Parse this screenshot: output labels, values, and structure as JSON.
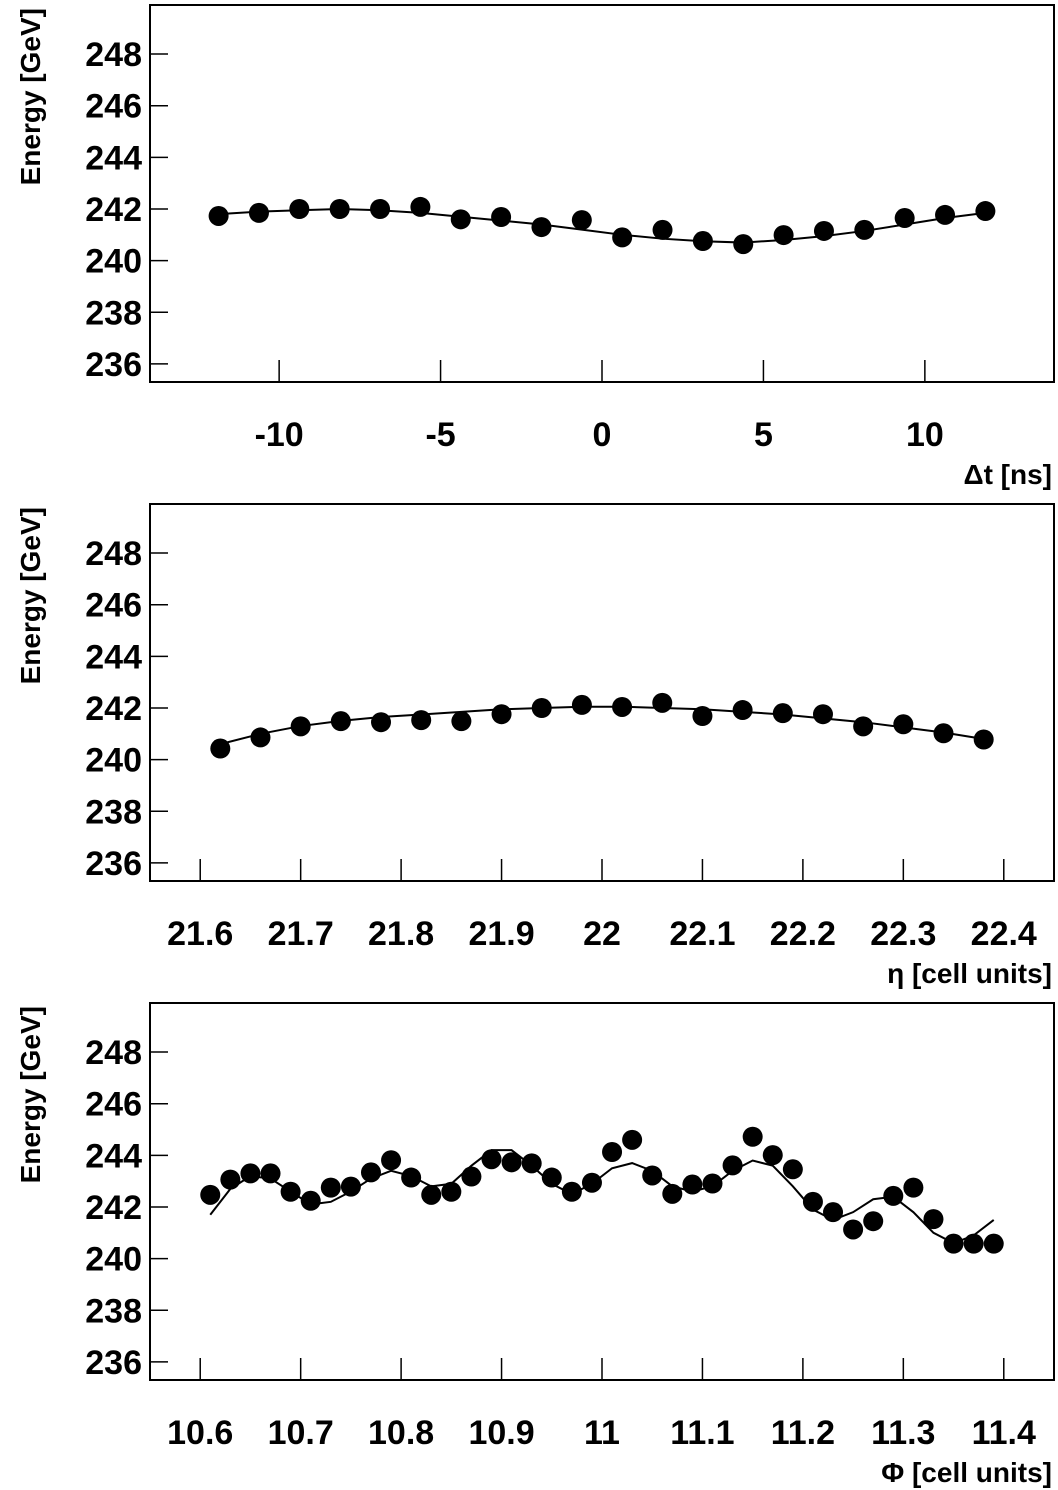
{
  "chart_data": [
    {
      "type": "scatter",
      "y_label": "Energy [GeV]",
      "x_label": "Δt [ns]",
      "x": [
        -11.875,
        -10.625,
        -9.375,
        -8.125,
        -6.875,
        -5.625,
        -4.375,
        -3.125,
        -1.875,
        -0.625,
        0.625,
        1.875,
        3.125,
        4.375,
        5.625,
        6.875,
        8.125,
        9.375,
        10.625,
        11.875
      ],
      "values": [
        241.73,
        241.85,
        242.0,
        242.0,
        242.0,
        242.08,
        241.6,
        241.69,
        241.3,
        241.57,
        240.9,
        241.19,
        240.76,
        240.64,
        240.99,
        241.15,
        241.19,
        241.65,
        241.77,
        241.92
      ],
      "fit_values": [
        241.8,
        241.9,
        241.95,
        242.0,
        241.95,
        241.85,
        241.7,
        241.55,
        241.4,
        241.2,
        241.0,
        240.85,
        240.75,
        240.7,
        240.8,
        240.95,
        241.15,
        241.4,
        241.65,
        241.85
      ],
      "color": "#000000",
      "xlim": [
        -14,
        14
      ],
      "xticks": [
        -10,
        -5,
        0,
        5,
        10
      ],
      "ylim": [
        235.3,
        249.9
      ],
      "yticks": [
        236,
        238,
        240,
        242,
        244,
        246,
        248
      ]
    },
    {
      "type": "scatter",
      "y_label": "Energy [GeV]",
      "x_label": "η [cell units]",
      "x": [
        21.62,
        21.66,
        21.7,
        21.74,
        21.78,
        21.82,
        21.86,
        21.9,
        21.94,
        21.98,
        22.02,
        22.06,
        22.1,
        22.14,
        22.18,
        22.22,
        22.26,
        22.3,
        22.34,
        22.38
      ],
      "values": [
        240.43,
        240.86,
        241.29,
        241.49,
        241.45,
        241.53,
        241.49,
        241.76,
        242.0,
        242.12,
        242.04,
        242.2,
        241.69,
        241.92,
        241.8,
        241.76,
        241.29,
        241.37,
        241.02,
        240.78
      ],
      "fit_values": [
        240.6,
        241.0,
        241.3,
        241.5,
        241.65,
        241.75,
        241.85,
        241.95,
        242.0,
        242.05,
        242.05,
        242.0,
        241.95,
        241.85,
        241.75,
        241.6,
        241.45,
        241.25,
        241.05,
        240.8
      ],
      "color": "#000000",
      "xlim": [
        21.55,
        22.45
      ],
      "xticks": [
        21.6,
        21.7,
        21.8,
        21.9,
        22,
        22.1,
        22.2,
        22.3,
        22.4
      ],
      "ylim": [
        235.3,
        249.9
      ],
      "yticks": [
        236,
        238,
        240,
        242,
        244,
        246,
        248
      ]
    },
    {
      "type": "scatter",
      "y_label": "Energy [GeV]",
      "x_label": "Φ [cell units]",
      "x": [
        10.61,
        10.63,
        10.65,
        10.67,
        10.69,
        10.71,
        10.73,
        10.75,
        10.77,
        10.79,
        10.81,
        10.83,
        10.85,
        10.87,
        10.89,
        10.91,
        10.93,
        10.95,
        10.97,
        10.99,
        11.01,
        11.03,
        11.05,
        11.07,
        11.09,
        11.11,
        11.13,
        11.15,
        11.17,
        11.19,
        11.21,
        11.23,
        11.25,
        11.27,
        11.29,
        11.31,
        11.33,
        11.35,
        11.37,
        11.39
      ],
      "values": [
        242.47,
        243.06,
        243.3,
        243.3,
        242.59,
        242.24,
        242.75,
        242.79,
        243.34,
        243.81,
        243.14,
        242.47,
        242.59,
        243.18,
        243.85,
        243.73,
        243.69,
        243.14,
        242.59,
        242.94,
        244.13,
        244.6,
        243.22,
        242.51,
        242.87,
        242.91,
        243.61,
        244.72,
        244.01,
        243.46,
        242.2,
        241.8,
        241.13,
        241.45,
        242.43,
        242.75,
        241.53,
        240.58,
        240.58,
        240.58
      ],
      "fit_values": [
        241.7,
        242.7,
        243.2,
        243.1,
        242.6,
        242.1,
        242.2,
        242.6,
        243.1,
        243.4,
        243.2,
        242.8,
        242.9,
        243.6,
        244.2,
        244.2,
        243.6,
        242.9,
        242.5,
        242.9,
        243.5,
        243.7,
        243.4,
        242.8,
        242.6,
        242.8,
        243.4,
        243.8,
        243.6,
        242.8,
        241.9,
        241.5,
        241.8,
        242.3,
        242.4,
        241.8,
        241.0,
        240.6,
        240.9,
        241.5
      ],
      "color": "#000000",
      "xlim": [
        10.55,
        11.45
      ],
      "xticks": [
        10.6,
        10.7,
        10.8,
        10.9,
        11,
        11.1,
        11.2,
        11.3,
        11.4
      ],
      "ylim": [
        235.3,
        249.9
      ],
      "yticks": [
        236,
        238,
        240,
        242,
        244,
        246,
        248
      ]
    }
  ]
}
